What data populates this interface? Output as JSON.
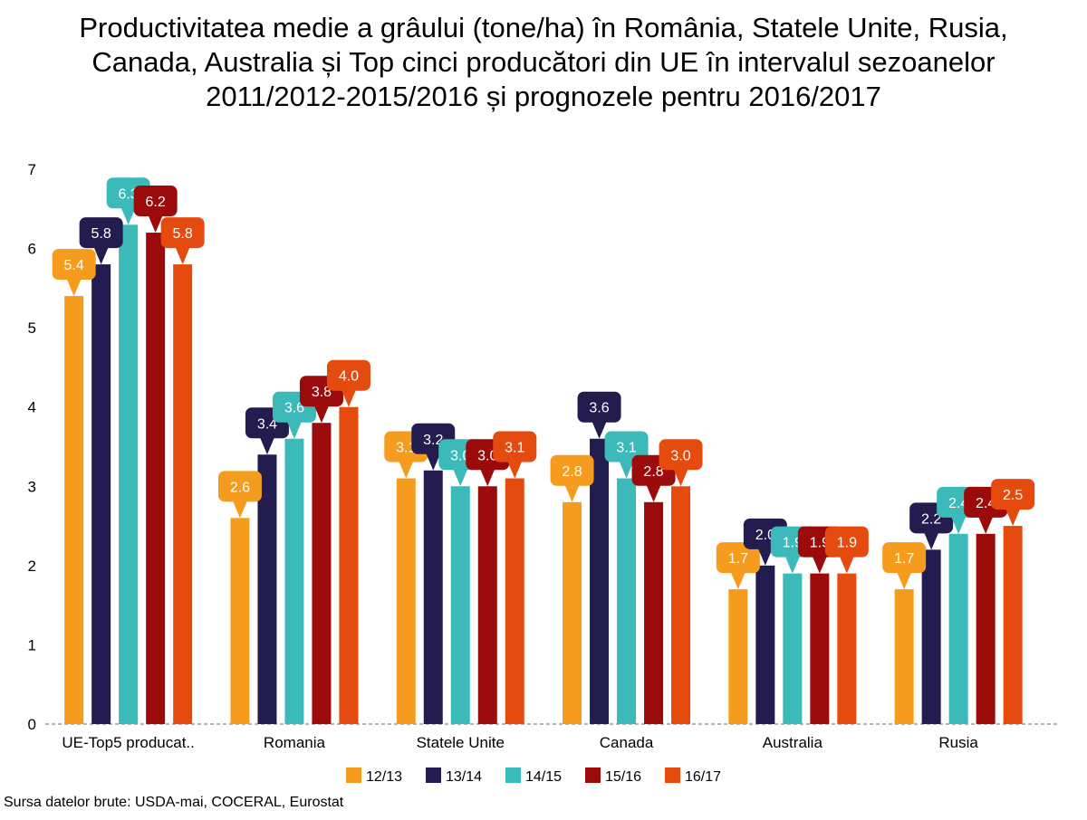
{
  "title_lines": [
    "Productivitatea medie a grâului (tone/ha) în România, Statele Unite, Rusia,",
    "Canada, Australia și Top cinci producători din UE în intervalul sezoanelor",
    "2011/2012-2015/2016 și prognozele pentru 2016/2017"
  ],
  "source": "Sursa datelor brute: USDA-mai, COCERAL, Eurostat",
  "chart_data": {
    "type": "bar",
    "title": "Productivitatea medie a grâului (tone/ha) în România, Statele Unite, Rusia, Canada, Australia și Top cinci producători din UE în intervalul sezoanelor 2011/2012-2015/2016 și prognozele pentru 2016/2017",
    "xlabel": "",
    "ylabel": "",
    "ylim": [
      0,
      7
    ],
    "yticks": [
      0,
      1,
      2,
      3,
      4,
      5,
      6,
      7
    ],
    "categories": [
      "UE-Top5 producat..",
      "Romania",
      "Statele Unite",
      "Canada",
      "Australia",
      "Rusia"
    ],
    "series": [
      {
        "name": "12/13",
        "color": "#f59c1e",
        "values": [
          5.4,
          2.6,
          3.1,
          2.8,
          1.7,
          1.7
        ]
      },
      {
        "name": "13/14",
        "color": "#231c4f",
        "values": [
          5.8,
          3.4,
          3.2,
          3.6,
          2.0,
          2.2
        ]
      },
      {
        "name": "14/15",
        "color": "#3bbab9",
        "values": [
          6.3,
          3.6,
          3.0,
          3.1,
          1.9,
          2.4
        ]
      },
      {
        "name": "15/16",
        "color": "#9b0b0b",
        "values": [
          6.2,
          3.8,
          3.0,
          2.8,
          1.9,
          2.4
        ]
      },
      {
        "name": "16/17",
        "color": "#e54a0f",
        "values": [
          5.8,
          4.0,
          3.1,
          3.0,
          1.9,
          2.5
        ]
      }
    ],
    "data_labels": true,
    "grid": false,
    "legend": "bottom"
  }
}
